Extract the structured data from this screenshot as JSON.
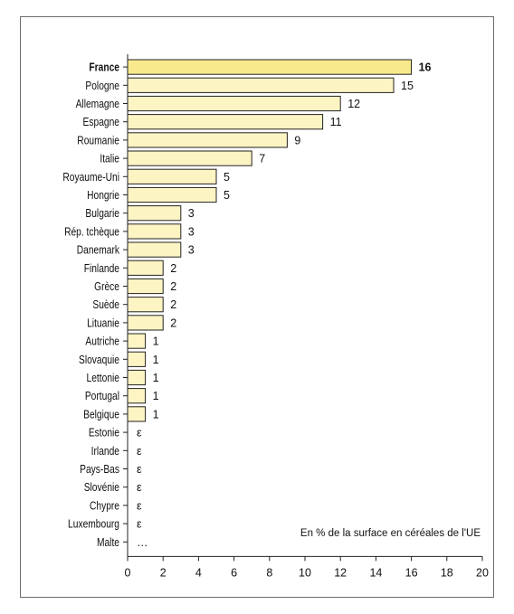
{
  "chart_data": {
    "type": "bar",
    "orientation": "horizontal",
    "categories": [
      "France",
      "Pologne",
      "Allemagne",
      "Espagne",
      "Roumanie",
      "Italie",
      "Royaume-Uni",
      "Hongrie",
      "Bulgarie",
      "Rép. tchèque",
      "Danemark",
      "Finlande",
      "Grèce",
      "Suède",
      "Lituanie",
      "Autriche",
      "Slovaquie",
      "Lettonie",
      "Portugal",
      "Belgique",
      "Estonie",
      "Irlande",
      "Pays-Bas",
      "Slovénie",
      "Chypre",
      "Luxembourg",
      "Malte"
    ],
    "values": [
      16,
      15,
      12,
      11,
      9,
      7,
      5,
      5,
      3,
      3,
      3,
      2,
      2,
      2,
      2,
      1,
      1,
      1,
      1,
      1,
      null,
      null,
      null,
      null,
      null,
      null,
      null
    ],
    "value_labels": [
      "16",
      "15",
      "12",
      "11",
      "9",
      "7",
      "5",
      "5",
      "3",
      "3",
      "3",
      "2",
      "2",
      "2",
      "2",
      "1",
      "1",
      "1",
      "1",
      "1",
      "ε",
      "ε",
      "ε",
      "ε",
      "ε",
      "ε",
      "…"
    ],
    "highlighted_category": "France",
    "xlim": [
      0,
      20
    ],
    "xticks": [
      "0",
      "2",
      "4",
      "6",
      "8",
      "10",
      "12",
      "14",
      "16",
      "18",
      "20"
    ],
    "annotation": "En % de la surface en céréales de l'UE",
    "colors": {
      "bar_fill": "#fdf4c4",
      "highlight_fill": "#f8ea8c",
      "bar_stroke": "#222222"
    },
    "grid": false
  }
}
